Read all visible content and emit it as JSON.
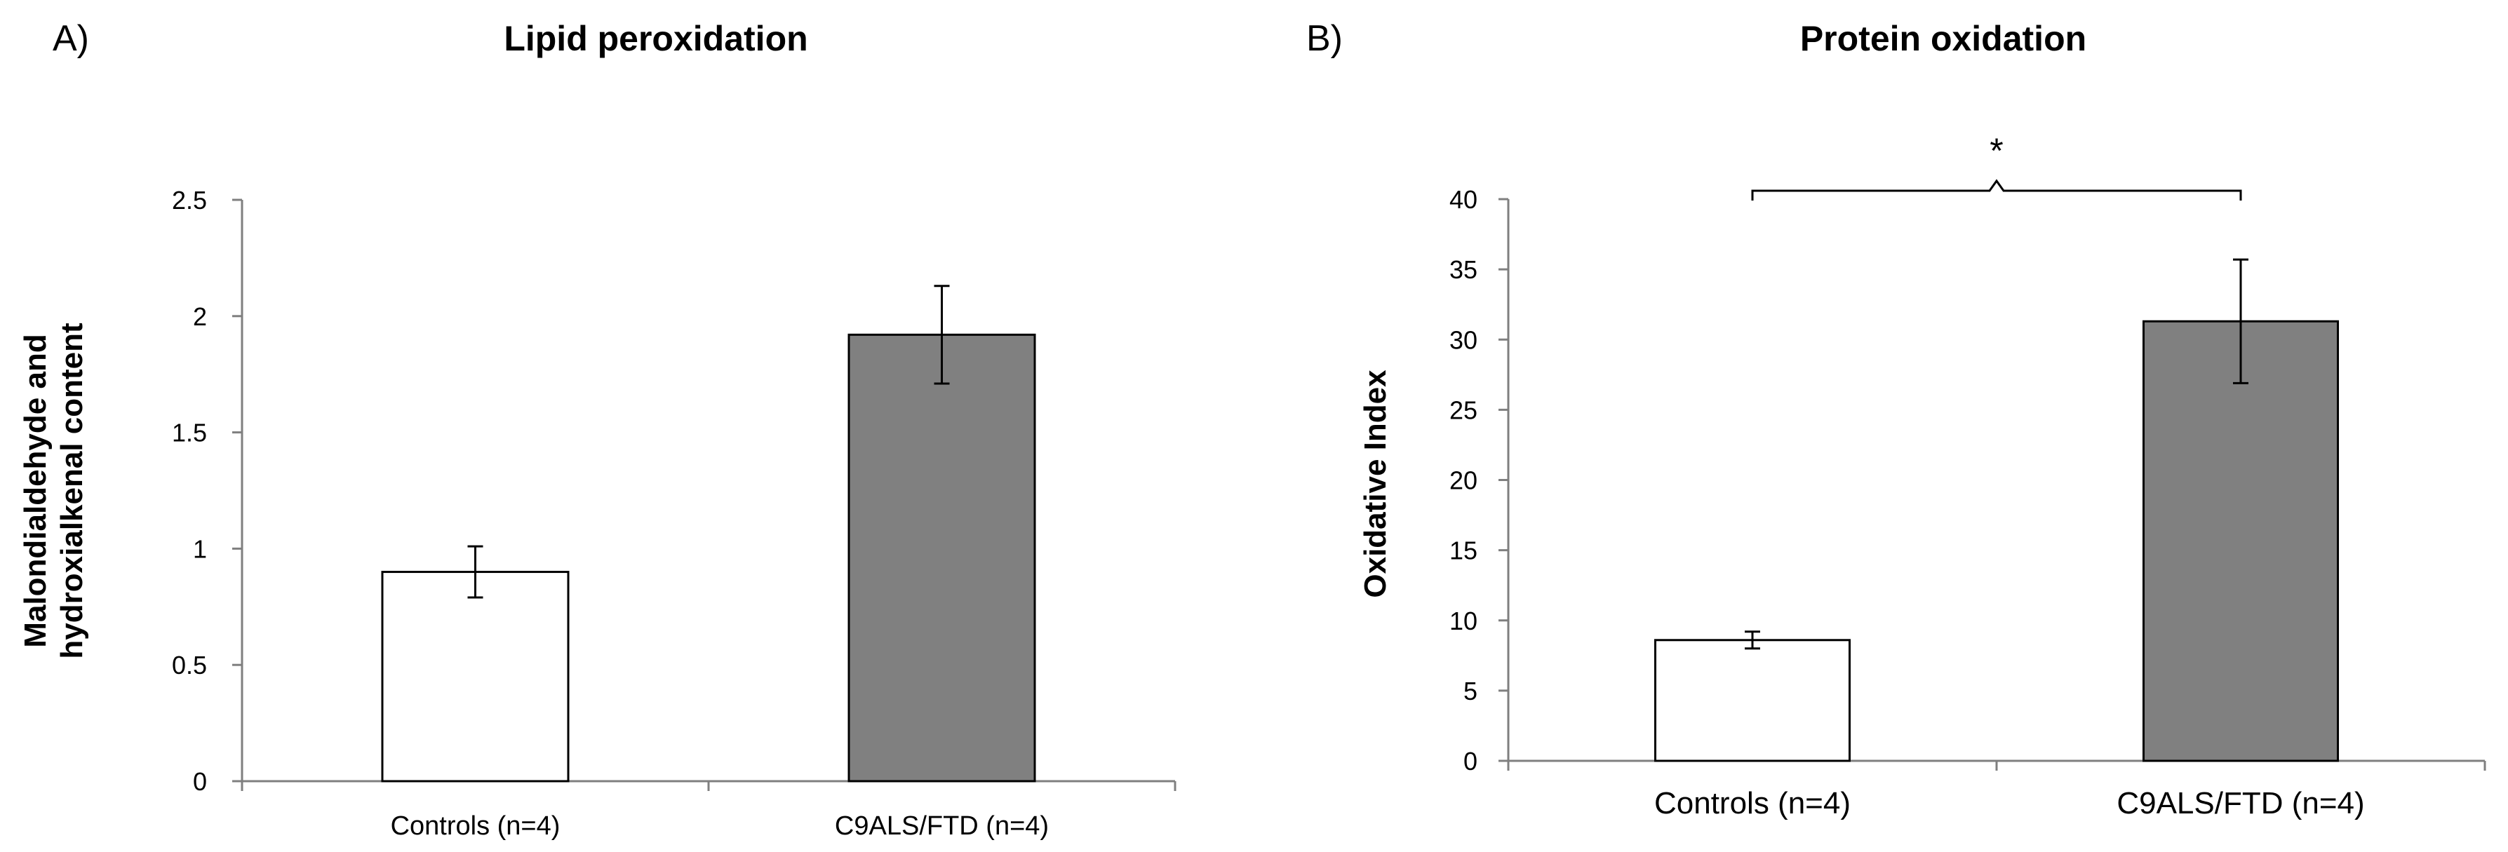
{
  "colors": {
    "control_bar": "#ffffff",
    "c9_bar": "#808080",
    "stroke": "#000000",
    "axis": "#7f7f7f"
  },
  "chart_data": [
    {
      "type": "bar",
      "panel_label": "A)",
      "title": "Lipid peroxidation",
      "ylabel_lines": [
        "Malondialdehyde and",
        "hydroxialkenal content"
      ],
      "xlabel": "",
      "categories": [
        "Controls (n=4)",
        "C9ALS/FTD (n=4)"
      ],
      "values": [
        0.9,
        1.92
      ],
      "errors": [
        0.11,
        0.21
      ],
      "ylim": [
        0,
        2.5
      ],
      "yticks": [
        0,
        0.5,
        1,
        1.5,
        2,
        2.5
      ],
      "ytick_labels": [
        "0",
        "0.5",
        "1",
        "1.5",
        "2",
        "2.5"
      ],
      "significance": null,
      "grid": false
    },
    {
      "type": "bar",
      "panel_label": "B)",
      "title": "Protein oxidation",
      "ylabel_lines": [
        "Oxidative Index"
      ],
      "xlabel": "",
      "categories": [
        "Controls (n=4)",
        "C9ALS/FTD  (n=4)"
      ],
      "values": [
        8.6,
        31.3
      ],
      "errors": [
        0.6,
        4.4
      ],
      "ylim": [
        0,
        40
      ],
      "yticks": [
        0,
        5,
        10,
        15,
        20,
        25,
        30,
        35,
        40
      ],
      "ytick_labels": [
        "0",
        "5",
        "10",
        "15",
        "20",
        "25",
        "30",
        "35",
        "40"
      ],
      "significance": "*",
      "grid": false
    }
  ]
}
